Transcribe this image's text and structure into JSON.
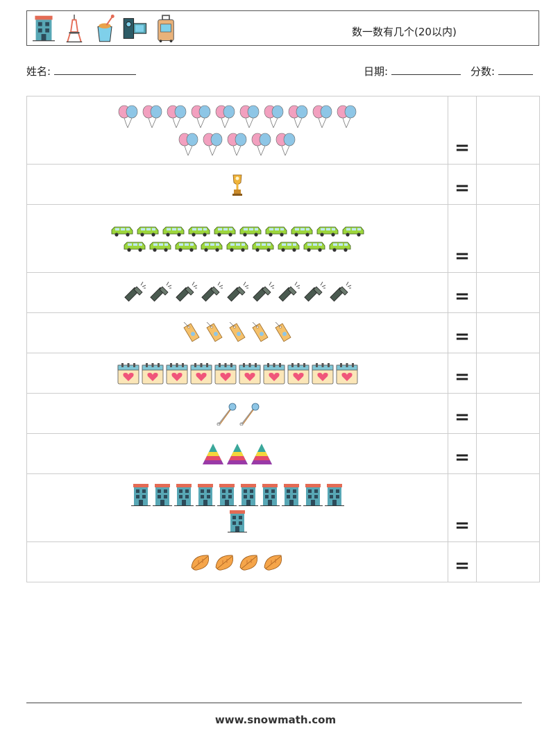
{
  "header": {
    "title": "数一数有几个(20以内)",
    "icons": [
      "building-icon",
      "tower-icon",
      "sand-bucket-icon",
      "camera-icon",
      "suitcase-icon"
    ]
  },
  "info": {
    "name_label": "姓名:",
    "date_label": "日期:",
    "score_label": "分数:"
  },
  "equals": "=",
  "rows": [
    {
      "item": "balloon-icon",
      "count": 15
    },
    {
      "item": "trophy-icon",
      "count": 1
    },
    {
      "item": "car-icon",
      "count": 19
    },
    {
      "item": "flashlight-icon",
      "count": 9
    },
    {
      "item": "tag-icon",
      "count": 5
    },
    {
      "item": "calendar-icon",
      "count": 10
    },
    {
      "item": "safety-pin-icon",
      "count": 2
    },
    {
      "item": "pyramid-icon",
      "count": 3
    },
    {
      "item": "building-icon",
      "count": 11
    },
    {
      "item": "leaf-icon",
      "count": 4
    }
  ],
  "footer": {
    "website": "www.snowmath.com"
  }
}
